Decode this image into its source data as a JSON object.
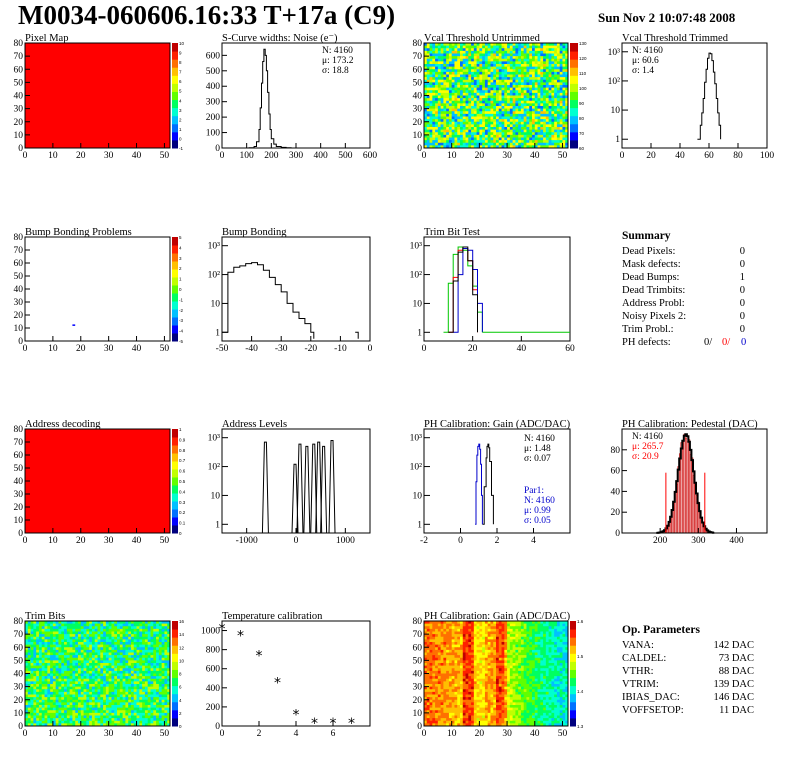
{
  "header": {
    "title": "M0034-060606.16:33 T+17a (C9)",
    "timestamp": "Sun Nov  2 10:07:48 2008"
  },
  "colors": {
    "map_red": "#ff0000",
    "green_curve": "#00c800",
    "red_curve": "#ff0000",
    "blue_curve": "#0000cc",
    "pedestal_fill": "#cc0000"
  },
  "chart_data": [
    {
      "id": "pixel-map",
      "type": "heatmap",
      "title": "Pixel Map",
      "xlim": [
        0,
        52
      ],
      "ylim": [
        0,
        80
      ],
      "xticks": [
        "0",
        "10",
        "20",
        "30",
        "40",
        "50"
      ],
      "yticks": [
        "0",
        "10",
        "20",
        "30",
        "40",
        "50",
        "60",
        "70",
        "80"
      ],
      "colorbar_ticks": [
        "-1",
        "0",
        "1",
        "2",
        "3",
        "4",
        "5",
        "6",
        "7",
        "8",
        "9",
        "10"
      ],
      "fill": "uniform red"
    },
    {
      "id": "scurve-noise",
      "type": "line",
      "title": "S-Curve widths: Noise (e⁻)",
      "xlim": [
        0,
        600
      ],
      "ylim": [
        0,
        680
      ],
      "xticks": [
        "0",
        "100",
        "200",
        "300",
        "400",
        "500",
        "600"
      ],
      "yticks": [
        "0",
        "100",
        "200",
        "300",
        "400",
        "500",
        "600"
      ],
      "stats": [
        "N: 4160",
        "μ: 173.2",
        "σ: 18.8"
      ],
      "x": [
        80,
        110,
        130,
        140,
        150,
        155,
        160,
        165,
        170,
        175,
        180,
        185,
        190,
        195,
        200,
        210,
        220,
        240,
        260,
        280
      ],
      "values": [
        0,
        2,
        10,
        40,
        120,
        260,
        420,
        560,
        640,
        600,
        500,
        360,
        220,
        120,
        60,
        25,
        10,
        4,
        2,
        0
      ]
    },
    {
      "id": "vcal-untrimmed",
      "type": "heatmap",
      "title": "Vcal Threshold Untrimmed",
      "xlim": [
        0,
        52
      ],
      "ylim": [
        0,
        80
      ],
      "xticks": [
        "0",
        "10",
        "20",
        "30",
        "40",
        "50"
      ],
      "yticks": [
        "0",
        "10",
        "20",
        "30",
        "40",
        "50",
        "60",
        "70",
        "80"
      ],
      "colorbar_ticks": [
        "60",
        "70",
        "80",
        "90",
        "100",
        "110",
        "120",
        "130"
      ],
      "fill": "noisy green/yellow"
    },
    {
      "id": "vcal-trimmed",
      "type": "line",
      "title": "Vcal Threshold Trimmed",
      "log_y": true,
      "xlim": [
        0,
        100
      ],
      "ylim": [
        0.5,
        2000
      ],
      "xticks": [
        "0",
        "20",
        "40",
        "60",
        "80",
        "100"
      ],
      "yticks": [
        "1",
        "10",
        "10²",
        "10³"
      ],
      "stats": [
        "N: 4160",
        "μ: 60.6",
        "σ:  1.4"
      ],
      "x": [
        52,
        54,
        55,
        56,
        57,
        58,
        59,
        60,
        61,
        62,
        63,
        64,
        65,
        66,
        67,
        68
      ],
      "values": [
        1,
        3,
        8,
        25,
        90,
        250,
        600,
        900,
        850,
        500,
        200,
        80,
        25,
        8,
        3,
        1
      ]
    },
    {
      "id": "bump-bonding-problems",
      "type": "heatmap",
      "title": "Bump Bonding Problems",
      "xlim": [
        0,
        52
      ],
      "ylim": [
        0,
        80
      ],
      "xticks": [
        "0",
        "10",
        "20",
        "30",
        "40",
        "50"
      ],
      "yticks": [
        "0",
        "10",
        "20",
        "30",
        "40",
        "50",
        "60",
        "70",
        "80"
      ],
      "colorbar_ticks": [
        "-5",
        "-4",
        "-3",
        "-2",
        "-1",
        "0",
        "1",
        "2",
        "3",
        "4",
        "5"
      ],
      "points": [
        {
          "x": 17,
          "y": 12
        }
      ]
    },
    {
      "id": "bump-bonding",
      "type": "line",
      "title": "Bump Bonding",
      "log_y": true,
      "xlim": [
        -50,
        0
      ],
      "ylim": [
        0.5,
        2000
      ],
      "xticks": [
        "-50",
        "-40",
        "-30",
        "-20",
        "-10",
        "0"
      ],
      "yticks": [
        "1",
        "10",
        "10²",
        "10³"
      ],
      "x": [
        -50,
        -48,
        -46,
        -44,
        -42,
        -40,
        -38,
        -36,
        -34,
        -32,
        -30,
        -28,
        -26,
        -24,
        -22,
        -20,
        -19,
        -5,
        -4
      ],
      "values": [
        1,
        120,
        180,
        200,
        240,
        260,
        220,
        140,
        80,
        45,
        25,
        10,
        5,
        3,
        2,
        1,
        0.6,
        1,
        0.6
      ]
    },
    {
      "id": "trim-bit-test",
      "type": "line",
      "title": "Trim Bit Test",
      "log_y": true,
      "xlim": [
        0,
        60
      ],
      "ylim": [
        0.5,
        2000
      ],
      "xticks": [
        "0",
        "20",
        "40",
        "60"
      ],
      "yticks": [
        "1",
        "10",
        "10²",
        "10³"
      ],
      "series": [
        {
          "color": "#00c800",
          "x": [
            8,
            10,
            12,
            14,
            16,
            18,
            20,
            22,
            24
          ],
          "values": [
            1,
            50,
            500,
            900,
            700,
            200,
            40,
            5,
            1
          ]
        },
        {
          "color": "#ff0000",
          "x": [
            10,
            12,
            14,
            16,
            18,
            20,
            22
          ],
          "values": [
            1,
            80,
            700,
            800,
            300,
            30,
            1
          ]
        },
        {
          "color": "#0000cc",
          "x": [
            12,
            14,
            16,
            18,
            20,
            22,
            24
          ],
          "values": [
            1,
            100,
            800,
            700,
            150,
            10,
            1
          ]
        },
        {
          "color": "#000000",
          "x": [
            10,
            12,
            14,
            16,
            18,
            20,
            22
          ],
          "values": [
            1,
            60,
            600,
            900,
            300,
            20,
            1
          ]
        }
      ]
    },
    {
      "id": "summary",
      "type": "table",
      "title": "Summary",
      "rows": [
        {
          "label": "Dead Pixels:",
          "value": "0"
        },
        {
          "label": "Mask defects:",
          "value": "0"
        },
        {
          "label": "Dead Bumps:",
          "value": "1"
        },
        {
          "label": "Dead Trimbits:",
          "value": "0"
        },
        {
          "label": "Address Probl:",
          "value": "0"
        },
        {
          "label": "Noisy Pixels 2:",
          "value": "0"
        },
        {
          "label": "Trim Probl.:",
          "value": "0"
        }
      ],
      "ph_defects": {
        "label": "PH defects:",
        "black": "0/",
        "red": "0/",
        "blue": "0"
      }
    },
    {
      "id": "address-decoding",
      "type": "heatmap",
      "title": "Address decoding",
      "xlim": [
        0,
        52
      ],
      "ylim": [
        0,
        80
      ],
      "xticks": [
        "0",
        "10",
        "20",
        "30",
        "40",
        "50"
      ],
      "yticks": [
        "0",
        "10",
        "20",
        "30",
        "40",
        "50",
        "60",
        "70",
        "80"
      ],
      "colorbar_ticks": [
        "0",
        "0.1",
        "0.2",
        "0.3",
        "0.4",
        "0.5",
        "0.6",
        "0.7",
        "0.8",
        "0.9",
        "1"
      ],
      "fill": "uniform red"
    },
    {
      "id": "address-levels",
      "type": "line",
      "title": "Address Levels",
      "log_y": true,
      "xlim": [
        -1500,
        1500
      ],
      "ylim": [
        0.5,
        2000
      ],
      "xticks": [
        "-1000",
        "0",
        "1000"
      ],
      "yticks": [
        "1",
        "10",
        "10²",
        "10³"
      ],
      "peaks": [
        {
          "x": -620,
          "value": 700
        },
        {
          "x": -20,
          "value": 120
        },
        {
          "x": 80,
          "value": 600
        },
        {
          "x": 220,
          "value": 500
        },
        {
          "x": 360,
          "value": 600
        },
        {
          "x": 460,
          "value": 700
        },
        {
          "x": 560,
          "value": 500
        },
        {
          "x": 730,
          "value": 800
        }
      ]
    },
    {
      "id": "ph-gain",
      "type": "line",
      "title": "PH Calibration: Gain (ADC/DAC)",
      "log_y": true,
      "xlim": [
        -2,
        6
      ],
      "ylim": [
        0.5,
        2000
      ],
      "xticks": [
        "-2",
        "0",
        "2",
        "4"
      ],
      "yticks": [
        "1",
        "10",
        "10²",
        "10³"
      ],
      "stats": [
        "N: 4160",
        "μ: 1.48",
        "σ: 0.07"
      ],
      "fit_stats": [
        "Par1:",
        "N: 4160",
        "μ: 0.99",
        "σ: 0.05"
      ],
      "series": [
        {
          "color": "#000000",
          "x": [
            1.2,
            1.3,
            1.4,
            1.45,
            1.5,
            1.55,
            1.6,
            1.7,
            1.8
          ],
          "values": [
            1,
            20,
            200,
            500,
            600,
            450,
            150,
            10,
            1
          ]
        },
        {
          "color": "#0000cc",
          "x": [
            0.8,
            0.85,
            0.9,
            0.95,
            1.0,
            1.05,
            1.1,
            1.15,
            1.2
          ],
          "values": [
            1,
            30,
            250,
            500,
            600,
            400,
            120,
            10,
            1
          ]
        }
      ]
    },
    {
      "id": "ph-pedestal",
      "type": "bar",
      "title": "PH Calibration: Pedestal (DAC)",
      "xlim": [
        100,
        480
      ],
      "ylim": [
        0,
        100
      ],
      "xticks": [
        "200",
        "300",
        "400"
      ],
      "yticks": [
        "0",
        "20",
        "40",
        "60",
        "80"
      ],
      "stats_black": [
        "N: 4160"
      ],
      "stats_red": [
        "μ: 265.7",
        "σ: 20.9"
      ],
      "mean": 265.7,
      "sigma": 20.9,
      "peak": 95,
      "markers_x": [
        215,
        317
      ]
    },
    {
      "id": "trim-bits",
      "type": "heatmap",
      "title": "Trim Bits",
      "xlim": [
        0,
        52
      ],
      "ylim": [
        0,
        80
      ],
      "xticks": [
        "0",
        "10",
        "20",
        "30",
        "40",
        "50"
      ],
      "yticks": [
        "0",
        "10",
        "20",
        "30",
        "40",
        "50",
        "60",
        "70",
        "80"
      ],
      "colorbar_ticks": [
        "0",
        "2",
        "4",
        "6",
        "8",
        "10",
        "12",
        "14",
        "16"
      ],
      "fill": "noisy green"
    },
    {
      "id": "temperature-calibration",
      "type": "scatter",
      "title": "Temperature calibration",
      "xlim": [
        0,
        8
      ],
      "ylim": [
        0,
        1100
      ],
      "xticks": [
        "0",
        "2",
        "4",
        "6"
      ],
      "yticks": [
        "0",
        "200",
        "400",
        "600",
        "800",
        "1000"
      ],
      "x": [
        0,
        1,
        2,
        3,
        4,
        5,
        6,
        7
      ],
      "values": [
        1020,
        950,
        740,
        455,
        120,
        30,
        30,
        30
      ]
    },
    {
      "id": "ph-gain-map",
      "type": "heatmap",
      "title": "PH Calibration: Gain (ADC/DAC)",
      "xlim": [
        0,
        52
      ],
      "ylim": [
        0,
        80
      ],
      "xticks": [
        "0",
        "10",
        "20",
        "30",
        "40",
        "50"
      ],
      "yticks": [
        "0",
        "10",
        "20",
        "30",
        "40",
        "50",
        "60",
        "70",
        "80"
      ],
      "colorbar_ticks": [
        "1.3",
        "1.4",
        "1.5",
        "1.6"
      ],
      "fill": "column gradient red to green"
    },
    {
      "id": "op-parameters",
      "type": "table",
      "title": "Op. Parameters",
      "rows": [
        {
          "label": "VANA:",
          "value": "142 DAC"
        },
        {
          "label": "CALDEL:",
          "value": "73 DAC"
        },
        {
          "label": "VTHR:",
          "value": "88 DAC"
        },
        {
          "label": "VTRIM:",
          "value": "139 DAC"
        },
        {
          "label": "IBIAS_DAC:",
          "value": "146 DAC"
        },
        {
          "label": "VOFFSETOP:",
          "value": "11 DAC"
        }
      ]
    }
  ]
}
